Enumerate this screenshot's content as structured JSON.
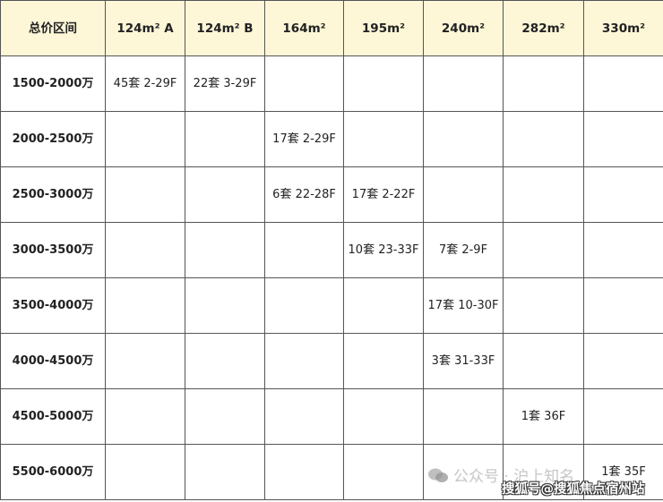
{
  "table": {
    "headers": [
      "总价区间",
      "124m² A",
      "124m² B",
      "164m²",
      "195m²",
      "240m²",
      "282m²",
      "330m²"
    ],
    "rows": [
      [
        "1500-2000万",
        "45套 2-29F",
        "22套 3-29F",
        "",
        "",
        "",
        "",
        ""
      ],
      [
        "2000-2500万",
        "",
        "",
        "17套 2-29F",
        "",
        "",
        "",
        ""
      ],
      [
        "2500-3000万",
        "",
        "",
        "6套 22-28F",
        "17套 2-22F",
        "",
        "",
        ""
      ],
      [
        "3000-3500万",
        "",
        "",
        "",
        "10套 23-33F",
        "7套 2-9F",
        "",
        ""
      ],
      [
        "3500-4000万",
        "",
        "",
        "",
        "",
        "17套 10-30F",
        "",
        ""
      ],
      [
        "4000-4500万",
        "",
        "",
        "",
        "",
        "3套 31-33F",
        "",
        ""
      ],
      [
        "4500-5000万",
        "",
        "",
        "",
        "",
        "",
        "1套 36F",
        ""
      ],
      [
        "5500-6000万",
        "",
        "",
        "",
        "",
        "",
        "",
        "1套 35F"
      ]
    ],
    "header_bg": "#fdf7d8"
  },
  "watermarks": {
    "wechat": "公众号 · 沪上知名",
    "sohu": "搜狐号@搜狐焦点宿州站"
  }
}
